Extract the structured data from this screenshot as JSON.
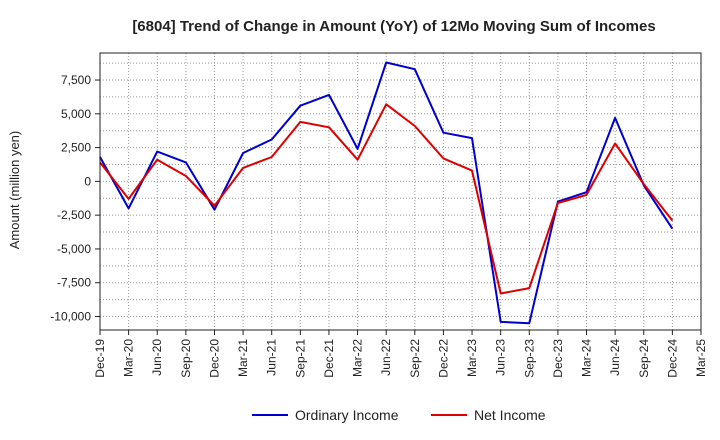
{
  "chart_data": {
    "type": "line",
    "title": "[6804]  Trend of Change in Amount (YoY) of 12Mo Moving Sum of Incomes",
    "ylabel": "Amount (million yen)",
    "xlabel": "",
    "categories": [
      "Dec-19",
      "Mar-20",
      "Jun-20",
      "Sep-20",
      "Dec-20",
      "Mar-21",
      "Jun-21",
      "Sep-21",
      "Dec-21",
      "Mar-22",
      "Jun-22",
      "Sep-22",
      "Dec-22",
      "Mar-23",
      "Jun-23",
      "Sep-23",
      "Dec-23",
      "Mar-24",
      "Jun-24",
      "Sep-24",
      "Dec-24",
      "Mar-25"
    ],
    "ylim": [
      -11000,
      9500
    ],
    "yticks": [
      -10000,
      -7500,
      -5000,
      -2500,
      0,
      2500,
      5000,
      7500
    ],
    "ytick_labels": [
      "-10,000",
      "-7,500",
      "-5,000",
      "-2,500",
      "0",
      "2,500",
      "5,000",
      "7,500"
    ],
    "grid": true,
    "legend_position": "bottom-center",
    "series": [
      {
        "name": "Ordinary Income",
        "color": "#0000cc",
        "values": [
          1800,
          -2000,
          2200,
          1400,
          -2100,
          2100,
          3100,
          5600,
          6400,
          2400,
          8800,
          8300,
          3600,
          3200,
          -10400,
          -10500,
          -1500,
          -800,
          4700,
          -300,
          -3500,
          null
        ]
      },
      {
        "name": "Net Income",
        "color": "#dd0000",
        "values": [
          1400,
          -1300,
          1600,
          400,
          -1800,
          1000,
          1800,
          4400,
          4000,
          1600,
          5700,
          4100,
          1700,
          800,
          -8300,
          -7900,
          -1600,
          -1000,
          2800,
          -200,
          -2900,
          null
        ]
      }
    ]
  }
}
